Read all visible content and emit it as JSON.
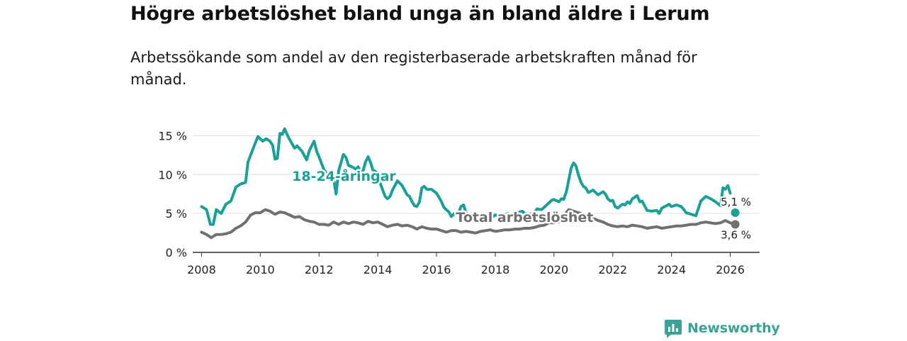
{
  "header": {
    "title": "Högre arbetslöshet bland unga än bland äldre i Lerum",
    "subtitle": "Arbetssökande som andel av den registerbaserade arbetskraften månad för månad."
  },
  "branding": {
    "name": "Newsworthy",
    "icon": "bar-chart-speech-bubble-icon",
    "color": "#3aa394"
  },
  "chart_data": {
    "type": "line",
    "title": "Högre arbetslöshet bland unga än bland äldre i Lerum",
    "subtitle": "Arbetssökande som andel av den registerbaserade arbetskraften månad för månad.",
    "xlabel": "",
    "ylabel": "",
    "xlim": [
      2007.7,
      2027.0
    ],
    "ylim": [
      0,
      16.5
    ],
    "grid": true,
    "x_ticks": [
      2008,
      2010,
      2012,
      2014,
      2016,
      2018,
      2020,
      2022,
      2024,
      2026
    ],
    "x_tick_labels": [
      "2008",
      "2010",
      "2012",
      "2014",
      "2016",
      "2018",
      "2020",
      "2022",
      "2024",
      "2026"
    ],
    "y_ticks": [
      0,
      5,
      10,
      15
    ],
    "y_tick_labels": [
      "0 %",
      "5 %",
      "10 %",
      "15 %"
    ],
    "series": [
      {
        "name": "18-24-åringar",
        "color": "#1aa197",
        "label_position": {
          "x": 2012.85,
          "y": 9.2
        },
        "end_label": "5,1 %",
        "end_value": 5.1,
        "end_x": 2026.17,
        "points": [
          [
            2008.0,
            5.9
          ],
          [
            2008.17,
            5.5
          ],
          [
            2008.3,
            3.6
          ],
          [
            2008.4,
            3.6
          ],
          [
            2008.5,
            5.5
          ],
          [
            2008.67,
            5.0
          ],
          [
            2008.83,
            6.2
          ],
          [
            2009.0,
            6.6
          ],
          [
            2009.17,
            8.4
          ],
          [
            2009.33,
            8.8
          ],
          [
            2009.5,
            9.0
          ],
          [
            2009.58,
            11.6
          ],
          [
            2009.75,
            13.3
          ],
          [
            2009.92,
            14.9
          ],
          [
            2010.08,
            14.3
          ],
          [
            2010.2,
            14.6
          ],
          [
            2010.33,
            14.3
          ],
          [
            2010.42,
            13.8
          ],
          [
            2010.5,
            12.0
          ],
          [
            2010.58,
            12.1
          ],
          [
            2010.67,
            15.3
          ],
          [
            2010.75,
            15.2
          ],
          [
            2010.83,
            15.9
          ],
          [
            2010.92,
            15.1
          ],
          [
            2011.0,
            14.5
          ],
          [
            2011.17,
            13.4
          ],
          [
            2011.25,
            13.7
          ],
          [
            2011.42,
            13.0
          ],
          [
            2011.58,
            11.9
          ],
          [
            2011.67,
            13.1
          ],
          [
            2011.83,
            14.3
          ],
          [
            2011.92,
            13.0
          ],
          [
            2012.0,
            12.3
          ],
          [
            2012.17,
            10.6
          ],
          [
            2012.33,
            9.8
          ],
          [
            2012.5,
            9.4
          ],
          [
            2012.58,
            7.5
          ],
          [
            2012.67,
            10.5
          ],
          [
            2012.83,
            12.6
          ],
          [
            2012.92,
            12.2
          ],
          [
            2013.0,
            11.2
          ],
          [
            2013.17,
            10.9
          ],
          [
            2013.25,
            10.7
          ],
          [
            2013.33,
            11.0
          ],
          [
            2013.42,
            10.3
          ],
          [
            2013.5,
            10.5
          ],
          [
            2013.58,
            11.6
          ],
          [
            2013.67,
            12.3
          ],
          [
            2013.75,
            11.6
          ],
          [
            2013.83,
            10.6
          ],
          [
            2013.92,
            10.4
          ],
          [
            2014.0,
            10.2
          ],
          [
            2014.08,
            8.9
          ],
          [
            2014.17,
            8.0
          ],
          [
            2014.25,
            7.2
          ],
          [
            2014.33,
            6.9
          ],
          [
            2014.42,
            7.2
          ],
          [
            2014.5,
            8.0
          ],
          [
            2014.67,
            9.2
          ],
          [
            2014.83,
            8.6
          ],
          [
            2015.0,
            7.4
          ],
          [
            2015.08,
            7.2
          ],
          [
            2015.17,
            6.5
          ],
          [
            2015.25,
            6.0
          ],
          [
            2015.33,
            5.9
          ],
          [
            2015.42,
            6.5
          ],
          [
            2015.5,
            8.3
          ],
          [
            2015.58,
            8.5
          ],
          [
            2015.67,
            8.1
          ],
          [
            2015.83,
            8.1
          ],
          [
            2016.0,
            7.6
          ],
          [
            2016.08,
            7.1
          ],
          [
            2016.17,
            6.5
          ],
          [
            2016.25,
            5.8
          ],
          [
            2016.33,
            5.5
          ],
          [
            2016.42,
            5.2
          ],
          [
            2016.5,
            4.6
          ],
          [
            2016.67,
            5.2
          ],
          [
            2016.75,
            5.0
          ],
          [
            2016.83,
            5.9
          ],
          [
            2016.92,
            6.1
          ],
          [
            2017.0,
            5.1
          ],
          [
            2017.17,
            4.6
          ],
          [
            2017.25,
            4.3
          ],
          [
            2017.33,
            4.5
          ],
          [
            2017.42,
            4.2
          ],
          [
            2017.5,
            4.0
          ],
          [
            2017.67,
            4.2
          ],
          [
            2017.75,
            4.4
          ],
          [
            2017.83,
            4.9
          ],
          [
            2017.92,
            4.6
          ],
          [
            2018.0,
            4.8
          ],
          [
            2018.17,
            4.7
          ],
          [
            2018.33,
            4.8
          ],
          [
            2018.42,
            5.0
          ],
          [
            2018.5,
            4.6
          ],
          [
            2018.67,
            4.9
          ],
          [
            2018.83,
            5.2
          ],
          [
            2018.92,
            5.3
          ],
          [
            2019.0,
            5.0
          ],
          [
            2019.17,
            4.9
          ],
          [
            2019.33,
            5.1
          ],
          [
            2019.42,
            5.6
          ],
          [
            2019.58,
            5.5
          ],
          [
            2019.75,
            6.1
          ],
          [
            2019.92,
            6.7
          ],
          [
            2020.0,
            6.8
          ],
          [
            2020.17,
            6.5
          ],
          [
            2020.25,
            6.9
          ],
          [
            2020.33,
            6.8
          ],
          [
            2020.42,
            7.8
          ],
          [
            2020.5,
            9.3
          ],
          [
            2020.58,
            10.8
          ],
          [
            2020.67,
            11.5
          ],
          [
            2020.75,
            11.1
          ],
          [
            2020.83,
            10.0
          ],
          [
            2020.92,
            9.0
          ],
          [
            2021.0,
            8.5
          ],
          [
            2021.08,
            8.3
          ],
          [
            2021.17,
            7.7
          ],
          [
            2021.33,
            8.0
          ],
          [
            2021.42,
            7.7
          ],
          [
            2021.5,
            7.4
          ],
          [
            2021.67,
            7.8
          ],
          [
            2021.75,
            7.5
          ],
          [
            2021.83,
            6.9
          ],
          [
            2021.92,
            6.6
          ],
          [
            2022.0,
            6.7
          ],
          [
            2022.08,
            5.9
          ],
          [
            2022.17,
            5.7
          ],
          [
            2022.33,
            6.2
          ],
          [
            2022.42,
            6.1
          ],
          [
            2022.5,
            6.5
          ],
          [
            2022.58,
            6.3
          ],
          [
            2022.67,
            6.9
          ],
          [
            2022.83,
            7.3
          ],
          [
            2022.92,
            6.5
          ],
          [
            2023.0,
            6.6
          ],
          [
            2023.17,
            5.4
          ],
          [
            2023.33,
            5.3
          ],
          [
            2023.5,
            5.4
          ],
          [
            2023.58,
            5.0
          ],
          [
            2023.67,
            5.7
          ],
          [
            2023.83,
            6.0
          ],
          [
            2023.92,
            6.2
          ],
          [
            2024.0,
            5.9
          ],
          [
            2024.17,
            6.1
          ],
          [
            2024.33,
            5.9
          ],
          [
            2024.42,
            5.5
          ],
          [
            2024.5,
            5.1
          ],
          [
            2024.67,
            4.9
          ],
          [
            2024.83,
            4.7
          ],
          [
            2024.92,
            5.7
          ],
          [
            2025.0,
            6.6
          ],
          [
            2025.17,
            7.2
          ],
          [
            2025.33,
            6.9
          ],
          [
            2025.42,
            6.7
          ],
          [
            2025.5,
            6.5
          ],
          [
            2025.67,
            6.0
          ],
          [
            2025.75,
            8.3
          ],
          [
            2025.83,
            8.1
          ],
          [
            2025.92,
            8.6
          ],
          [
            2026.0,
            7.6
          ]
        ]
      },
      {
        "name": "Total arbetslöshet",
        "color": "#707070",
        "label_position": {
          "x": 2019.0,
          "y": 3.9
        },
        "end_label": "3,6 %",
        "end_value": 3.6,
        "end_x": 2026.17,
        "points": [
          [
            2008.0,
            2.6
          ],
          [
            2008.17,
            2.3
          ],
          [
            2008.33,
            1.9
          ],
          [
            2008.5,
            2.3
          ],
          [
            2008.67,
            2.3
          ],
          [
            2008.83,
            2.4
          ],
          [
            2009.0,
            2.6
          ],
          [
            2009.17,
            3.1
          ],
          [
            2009.33,
            3.4
          ],
          [
            2009.5,
            3.9
          ],
          [
            2009.67,
            4.8
          ],
          [
            2009.83,
            5.1
          ],
          [
            2010.0,
            5.1
          ],
          [
            2010.17,
            5.5
          ],
          [
            2010.33,
            5.3
          ],
          [
            2010.5,
            4.9
          ],
          [
            2010.67,
            5.2
          ],
          [
            2010.83,
            5.1
          ],
          [
            2011.0,
            4.8
          ],
          [
            2011.17,
            4.5
          ],
          [
            2011.33,
            4.6
          ],
          [
            2011.5,
            4.2
          ],
          [
            2011.67,
            4.0
          ],
          [
            2011.83,
            3.9
          ],
          [
            2012.0,
            3.6
          ],
          [
            2012.17,
            3.6
          ],
          [
            2012.33,
            3.5
          ],
          [
            2012.5,
            3.9
          ],
          [
            2012.67,
            3.6
          ],
          [
            2012.83,
            3.9
          ],
          [
            2013.0,
            3.7
          ],
          [
            2013.17,
            3.9
          ],
          [
            2013.33,
            3.8
          ],
          [
            2013.5,
            3.6
          ],
          [
            2013.67,
            4.0
          ],
          [
            2013.83,
            3.8
          ],
          [
            2014.0,
            3.9
          ],
          [
            2014.17,
            3.6
          ],
          [
            2014.33,
            3.3
          ],
          [
            2014.5,
            3.5
          ],
          [
            2014.67,
            3.6
          ],
          [
            2014.83,
            3.4
          ],
          [
            2015.0,
            3.5
          ],
          [
            2015.17,
            3.3
          ],
          [
            2015.33,
            3.0
          ],
          [
            2015.5,
            3.3
          ],
          [
            2015.67,
            3.1
          ],
          [
            2015.83,
            3.0
          ],
          [
            2016.0,
            3.0
          ],
          [
            2016.17,
            2.8
          ],
          [
            2016.33,
            2.6
          ],
          [
            2016.5,
            2.8
          ],
          [
            2016.67,
            2.8
          ],
          [
            2016.83,
            2.6
          ],
          [
            2017.0,
            2.7
          ],
          [
            2017.17,
            2.6
          ],
          [
            2017.33,
            2.5
          ],
          [
            2017.5,
            2.7
          ],
          [
            2017.67,
            2.8
          ],
          [
            2017.83,
            2.9
          ],
          [
            2018.0,
            2.7
          ],
          [
            2018.17,
            2.8
          ],
          [
            2018.33,
            2.9
          ],
          [
            2018.5,
            2.9
          ],
          [
            2018.67,
            3.0
          ],
          [
            2018.83,
            3.0
          ],
          [
            2019.0,
            3.1
          ],
          [
            2019.17,
            3.1
          ],
          [
            2019.33,
            3.2
          ],
          [
            2019.5,
            3.4
          ],
          [
            2019.67,
            3.5
          ],
          [
            2019.83,
            3.8
          ],
          [
            2020.0,
            3.8
          ],
          [
            2020.17,
            3.9
          ],
          [
            2020.33,
            4.7
          ],
          [
            2020.5,
            5.5
          ],
          [
            2020.67,
            5.3
          ],
          [
            2020.83,
            5.1
          ],
          [
            2021.0,
            4.9
          ],
          [
            2021.17,
            4.7
          ],
          [
            2021.33,
            4.4
          ],
          [
            2021.5,
            4.1
          ],
          [
            2021.67,
            3.9
          ],
          [
            2021.83,
            3.6
          ],
          [
            2022.0,
            3.4
          ],
          [
            2022.17,
            3.3
          ],
          [
            2022.33,
            3.4
          ],
          [
            2022.5,
            3.3
          ],
          [
            2022.67,
            3.5
          ],
          [
            2022.83,
            3.4
          ],
          [
            2023.0,
            3.3
          ],
          [
            2023.17,
            3.1
          ],
          [
            2023.33,
            3.2
          ],
          [
            2023.5,
            3.3
          ],
          [
            2023.67,
            3.1
          ],
          [
            2023.83,
            3.2
          ],
          [
            2024.0,
            3.3
          ],
          [
            2024.17,
            3.4
          ],
          [
            2024.33,
            3.4
          ],
          [
            2024.5,
            3.5
          ],
          [
            2024.67,
            3.6
          ],
          [
            2024.83,
            3.6
          ],
          [
            2025.0,
            3.8
          ],
          [
            2025.17,
            3.9
          ],
          [
            2025.33,
            3.8
          ],
          [
            2025.5,
            3.7
          ],
          [
            2025.67,
            3.8
          ],
          [
            2025.83,
            4.1
          ],
          [
            2026.0,
            3.8
          ],
          [
            2026.17,
            3.6
          ]
        ]
      }
    ]
  }
}
